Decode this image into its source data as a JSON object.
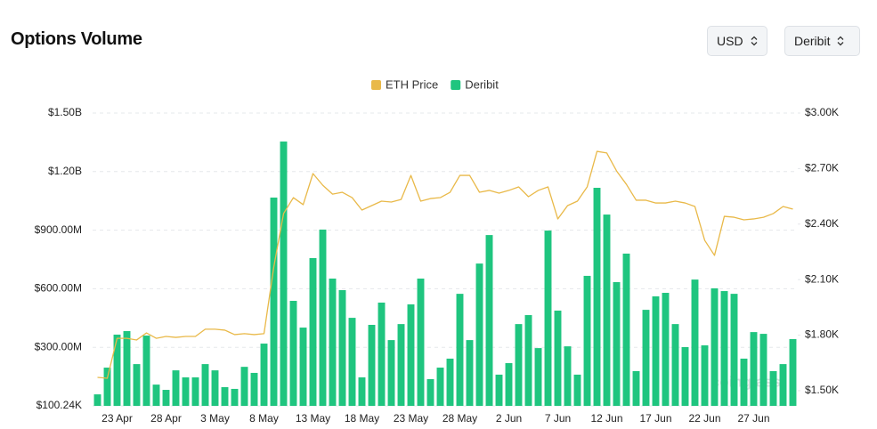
{
  "header": {
    "title": "Options Volume",
    "buttons": [
      "USD",
      "Deribit"
    ]
  },
  "chart_data": {
    "type": "bar",
    "legend": "top",
    "grid": true,
    "watermark": "coinglass",
    "categories": [
      null,
      null,
      "23 Apr",
      null,
      null,
      null,
      null,
      "28 Apr",
      null,
      null,
      null,
      null,
      "3 May",
      null,
      null,
      null,
      null,
      "8 May",
      null,
      null,
      null,
      null,
      "13 May",
      null,
      null,
      null,
      null,
      "18 May",
      null,
      null,
      null,
      null,
      "23 May",
      null,
      null,
      null,
      null,
      "28 May",
      null,
      null,
      null,
      null,
      "2 Jun",
      null,
      null,
      null,
      null,
      "7 Jun",
      null,
      null,
      null,
      null,
      "12 Jun",
      null,
      null,
      null,
      null,
      "17 Jun",
      null,
      null,
      null,
      null,
      "22 Jun",
      null,
      null,
      null,
      null,
      "27 Jun",
      null,
      null,
      null,
      null
    ],
    "series": [
      {
        "name": "ETH Price",
        "type": "line",
        "axis": "y2",
        "color": "#e9b949",
        "values": [
          1572,
          1567,
          1783,
          1783,
          1774,
          1812,
          1783,
          1793,
          1788,
          1793,
          1793,
          1832,
          1832,
          1827,
          1803,
          1808,
          1803,
          1808,
          2168,
          2457,
          2543,
          2505,
          2673,
          2610,
          2562,
          2572,
          2543,
          2476,
          2500,
          2524,
          2519,
          2533,
          2663,
          2524,
          2538,
          2543,
          2572,
          2663,
          2663,
          2572,
          2582,
          2567,
          2582,
          2601,
          2548,
          2582,
          2601,
          2428,
          2500,
          2524,
          2601,
          2793,
          2784,
          2687,
          2615,
          2529,
          2529,
          2514,
          2514,
          2524,
          2514,
          2495,
          2312,
          2231,
          2442,
          2437,
          2423,
          2428,
          2437,
          2457,
          2495,
          2481
        ]
      },
      {
        "name": "Deribit",
        "type": "bar",
        "color": "#1fc57f",
        "values": [
          59000000,
          196000000,
          365000000,
          383000000,
          214000000,
          360000000,
          109000000,
          82000000,
          182000000,
          146000000,
          146000000,
          214000000,
          182000000,
          96000000,
          87000000,
          200000000,
          169000000,
          319000000,
          1067000000,
          1354000000,
          538000000,
          401000000,
          757000000,
          903000000,
          652000000,
          593000000,
          451000000,
          146000000,
          415000000,
          529000000,
          337000000,
          419000000,
          520000000,
          652000000,
          137000000,
          196000000,
          242000000,
          574000000,
          337000000,
          729000000,
          875000000,
          160000000,
          219000000,
          419000000,
          465000000,
          296000000,
          898000000,
          488000000,
          305000000,
          160000000,
          666000000,
          1117000000,
          980000000,
          634000000,
          780000000,
          178000000,
          492000000,
          561000000,
          579000000,
          419000000,
          301000000,
          647000000,
          310000000,
          602000000,
          588000000,
          574000000,
          242000000,
          378000000,
          369000000,
          178000000,
          214000000,
          342000000
        ]
      }
    ],
    "ylim": [
      100240,
      1500000000
    ],
    "yticks": [
      {
        "value": 100240,
        "label": "$100.24K"
      },
      {
        "value": 300000000,
        "label": "$300.00M"
      },
      {
        "value": 600000000,
        "label": "$600.00M"
      },
      {
        "value": 900000000,
        "label": "$900.00M"
      },
      {
        "value": 1200000000,
        "label": "$1.20B"
      },
      {
        "value": 1500000000,
        "label": "$1.50B"
      }
    ],
    "y2lim": [
      1418,
      3000
    ],
    "y2ticks": [
      {
        "value": 1500,
        "label": "$1.50K"
      },
      {
        "value": 1800,
        "label": "$1.80K"
      },
      {
        "value": 2100,
        "label": "$2.10K"
      },
      {
        "value": 2400,
        "label": "$2.40K"
      },
      {
        "value": 2700,
        "label": "$2.70K"
      },
      {
        "value": 3000,
        "label": "$3.00K"
      }
    ]
  }
}
